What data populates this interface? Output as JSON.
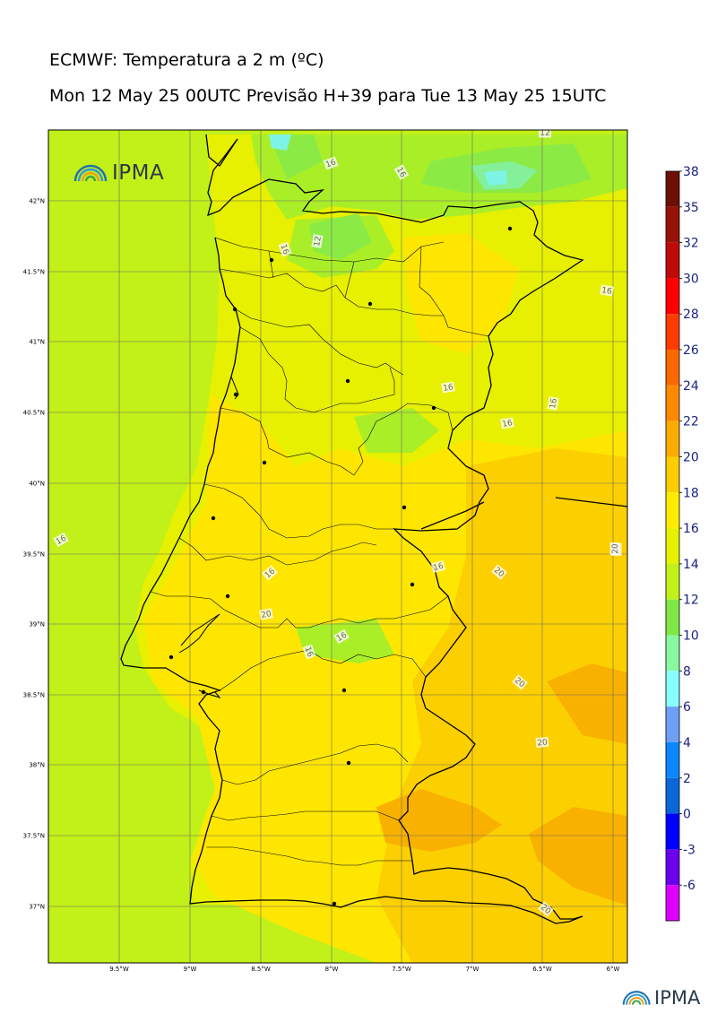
{
  "header": {
    "title": "ECMWF: Temperatura a 2 m (ºC)",
    "subtitle": "Mon 12 May 25 00UTC Previsão H+39 para Tue 13 May 25 15UTC"
  },
  "map": {
    "logo_text": "IPMA",
    "lat_ticks": [
      "42°N",
      "41.5°N",
      "41°N",
      "40.5°N",
      "40°N",
      "39.5°N",
      "39°N",
      "38.5°N",
      "38°N",
      "37.5°N",
      "37°N"
    ],
    "lon_ticks": [
      "9.5°W",
      "9°W",
      "8.5°W",
      "8°W",
      "7.5°W",
      "7°W",
      "6.5°W",
      "6°W"
    ],
    "contour_labels": [
      "12",
      "16",
      "16",
      "16",
      "12",
      "16",
      "16",
      "16",
      "16",
      "16",
      "16",
      "20",
      "20",
      "16",
      "20",
      "16",
      "16",
      "20",
      "20",
      "20",
      "20"
    ],
    "field_colors": {
      "sea": "#c2f019",
      "land_base": "#e6f000",
      "warm": "#ffe600",
      "warmer": "#fccf00",
      "hot": "#f9b100",
      "cool": "#aaee28",
      "cooler": "#8cea45",
      "cold": "#84f09a",
      "coldest": "#7ef4e6"
    }
  },
  "colorbar": {
    "labels": [
      "38",
      "35",
      "32",
      "30",
      "28",
      "26",
      "24",
      "22",
      "20",
      "18",
      "16",
      "14",
      "12",
      "10",
      "8",
      "6",
      "4",
      "2",
      "0",
      "-3",
      "-6"
    ],
    "colors": [
      "#6e0f06",
      "#961307",
      "#c00a0a",
      "#ff0000",
      "#ff3c00",
      "#fb6800",
      "#fb8a00",
      "#f9ab00",
      "#fccd00",
      "#ffec00",
      "#e6f000",
      "#c2f019",
      "#80e846",
      "#88f9a0",
      "#86ffff",
      "#6e9ff5",
      "#0a87ff",
      "#0a67d8",
      "#0000ff",
      "#6a00ee",
      "#dd00ff"
    ]
  },
  "footer": {
    "logo_text": "IPMA"
  }
}
